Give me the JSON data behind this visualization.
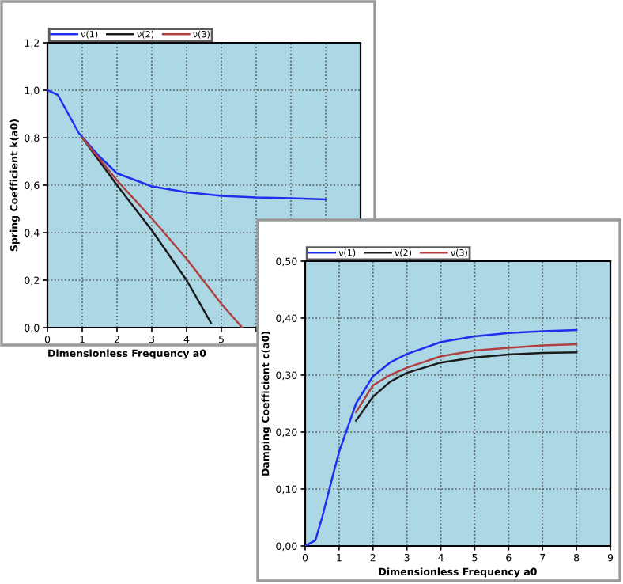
{
  "chart_data": [
    {
      "type": "line",
      "xlabel": "Dimensionless Frequency a0",
      "ylabel": "Spring Coefficient k(a0)",
      "xlim": [
        0,
        9
      ],
      "ylim": [
        0,
        1.2
      ],
      "xticks": [
        0,
        1,
        2,
        3,
        4,
        5,
        {
          "value": 6,
          "label": null
        },
        {
          "value": 7,
          "label": null
        },
        {
          "value": 8,
          "label": null
        },
        {
          "value": 9,
          "label": null
        }
      ],
      "yticks": [
        {
          "value": 0,
          "label": "0,0"
        },
        {
          "value": 0.2,
          "label": "0,2"
        },
        {
          "value": 0.4,
          "label": "0,4"
        },
        {
          "value": 0.6,
          "label": "0,6"
        },
        {
          "value": 0.8,
          "label": "0,8"
        },
        {
          "value": 1.0,
          "label": "1,0"
        },
        {
          "value": 1.2,
          "label": "1,2"
        }
      ],
      "grid": true,
      "legend": "top left",
      "series": [
        {
          "name": "ν(1)",
          "color": "#1f2ff0",
          "x": [
            0,
            0.3,
            0.6,
            0.9,
            1.5,
            2,
            3,
            4,
            5,
            6,
            7,
            8
          ],
          "values": [
            1.0,
            0.98,
            0.9,
            0.82,
            0.72,
            0.65,
            0.595,
            0.57,
            0.555,
            0.548,
            0.545,
            0.54
          ]
        },
        {
          "name": "ν(2)",
          "color": "#1c1c1c",
          "x": [
            1,
            1.5,
            2,
            3,
            4,
            4.7
          ],
          "values": [
            0.8,
            0.7,
            0.6,
            0.41,
            0.2,
            0.02
          ]
        },
        {
          "name": "ν(3)",
          "color": "#b04040",
          "x": [
            1,
            1.5,
            2,
            3,
            4,
            5,
            5.6
          ],
          "values": [
            0.8,
            0.71,
            0.62,
            0.46,
            0.29,
            0.1,
            0.0
          ]
        }
      ]
    },
    {
      "type": "line",
      "xlabel": "Dimensionless Frequency a0",
      "ylabel": "Damping Coefficient c(a0)",
      "xlim": [
        0,
        9
      ],
      "ylim": [
        0,
        0.5
      ],
      "xticks": [
        0,
        1,
        2,
        3,
        4,
        5,
        6,
        7,
        8,
        9
      ],
      "yticks": [
        {
          "value": 0,
          "label": "0,00"
        },
        {
          "value": 0.1,
          "label": "0,10"
        },
        {
          "value": 0.2,
          "label": "0,20"
        },
        {
          "value": 0.3,
          "label": "0,30"
        },
        {
          "value": 0.4,
          "label": "0,40"
        },
        {
          "value": 0.5,
          "label": "0,50"
        }
      ],
      "grid": true,
      "legend": "top left",
      "series": [
        {
          "name": "ν(1)",
          "color": "#1f2ff0",
          "x": [
            0,
            0.3,
            0.5,
            0.8,
            1,
            1.5,
            2,
            2.5,
            3,
            4,
            5,
            6,
            7,
            8
          ],
          "values": [
            0,
            0.01,
            0.05,
            0.12,
            0.165,
            0.25,
            0.298,
            0.322,
            0.337,
            0.358,
            0.368,
            0.374,
            0.377,
            0.379
          ]
        },
        {
          "name": "ν(2)",
          "color": "#1c1c1c",
          "x": [
            1.5,
            2,
            2.5,
            3,
            4,
            5,
            6,
            7,
            8
          ],
          "values": [
            0.22,
            0.262,
            0.288,
            0.304,
            0.322,
            0.331,
            0.336,
            0.339,
            0.34
          ]
        },
        {
          "name": "ν(3)",
          "color": "#b04040",
          "x": [
            1.5,
            2,
            2.5,
            3,
            4,
            5,
            6,
            7,
            8
          ],
          "values": [
            0.235,
            0.282,
            0.3,
            0.313,
            0.333,
            0.343,
            0.348,
            0.352,
            0.354
          ]
        }
      ]
    }
  ]
}
